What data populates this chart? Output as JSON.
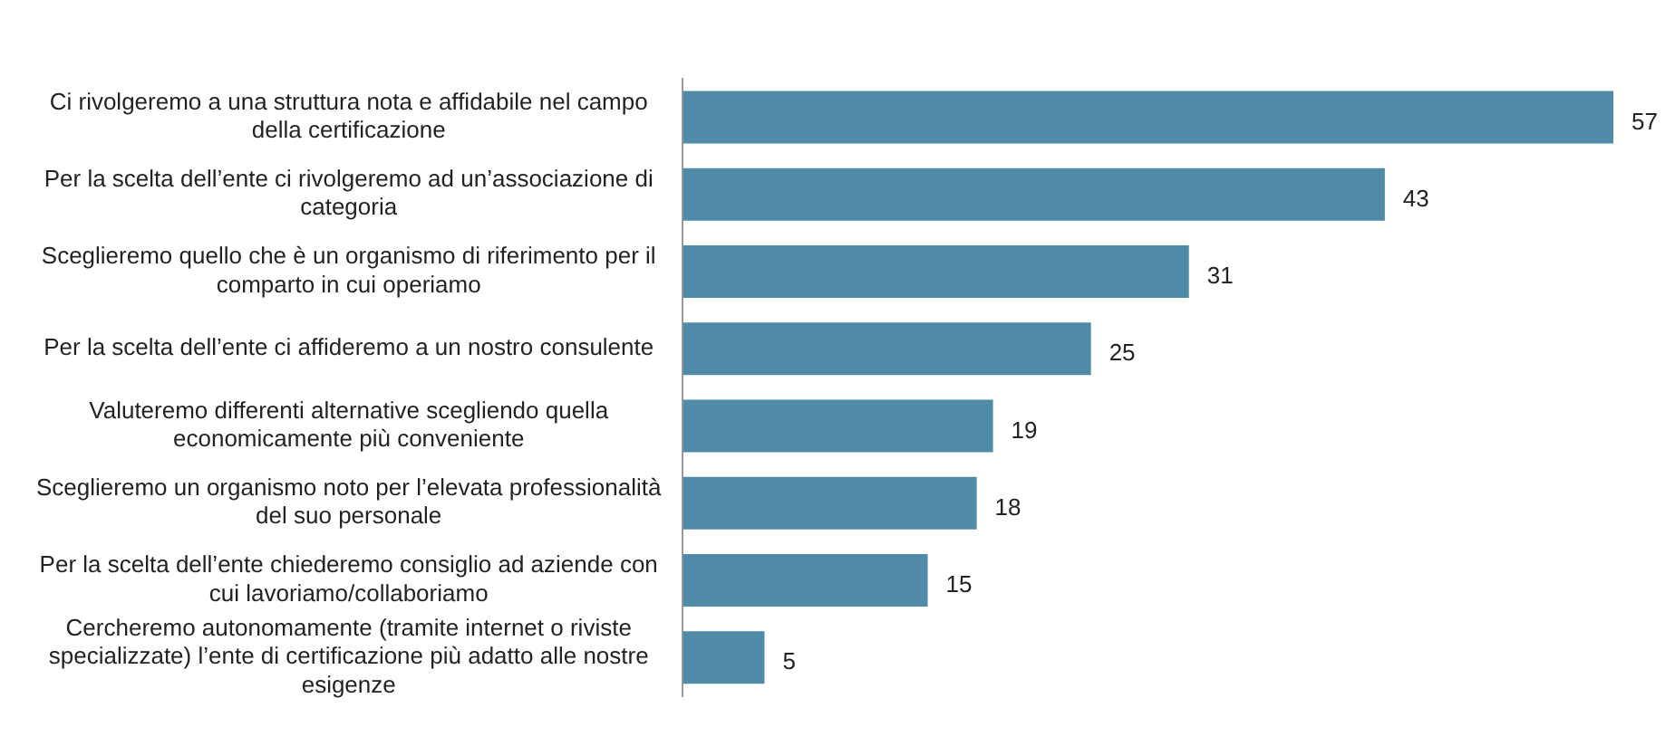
{
  "chart_data": {
    "type": "bar",
    "orientation": "horizontal",
    "data_labels": true,
    "categories": [
      "Ci rivolgeremo a una struttura nota e affidabile nel campo della certificazione",
      "Per la scelta dell’ente ci rivolgeremo ad un’associazione di categoria",
      "Sceglieremo quello che è un organismo di riferimento per il comparto in cui operiamo",
      "Per la scelta dell’ente ci affideremo a un nostro consulente",
      "Valuteremo differenti alternative scegliendo quella economicamente più conveniente",
      "Sceglieremo un organismo noto per l’elevata professionalità del suo personale",
      "Per la scelta dell’ente chiederemo consiglio ad aziende con cui lavoriamo/collaboriamo",
      "Cercheremo autonomamente (tramite internet o riviste specializzate) l’ente di certificazione più adatto alle nostre esigenze"
    ],
    "values": [
      57,
      43,
      31,
      25,
      19,
      18,
      15,
      5
    ],
    "color": "#4f8ba6"
  }
}
